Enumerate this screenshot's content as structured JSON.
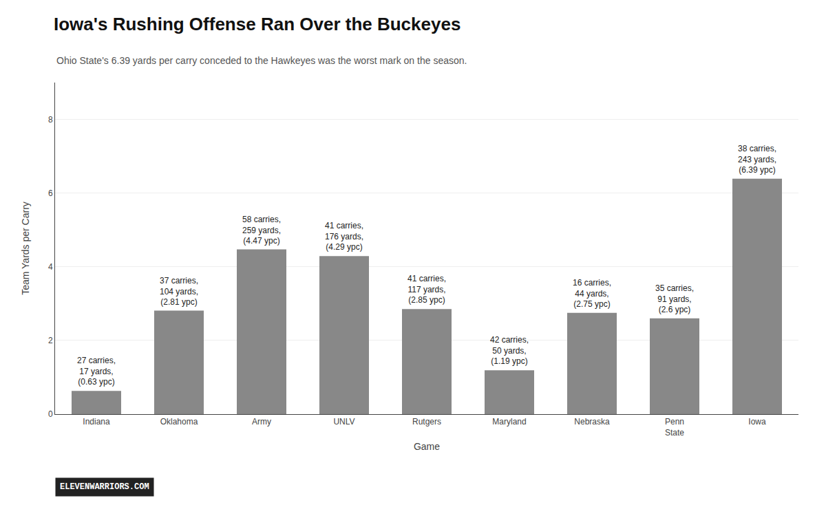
{
  "chart_data": {
    "type": "bar",
    "title": "Iowa's Rushing Offense Ran Over the Buckeyes",
    "subtitle": "Ohio State's 6.39 yards per carry conceded to the Hawkeyes was the worst mark on the season.",
    "ylabel": "Team Yards per Carry",
    "xlabel": "Game",
    "categories": [
      "Indiana",
      "Oklahoma",
      "Army",
      "UNLV",
      "Rutgers",
      "Maryland",
      "Nebraska",
      "Penn\nState",
      "Iowa"
    ],
    "values": [
      0.63,
      2.81,
      4.47,
      4.29,
      2.85,
      1.19,
      2.75,
      2.6,
      6.39
    ],
    "annotations": [
      "27 carries,\n17 yards,\n(0.63 ypc)",
      "37 carries,\n104 yards,\n(2.81 ypc)",
      "58 carries,\n259 yards,\n(4.47 ypc)",
      "41 carries,\n176 yards,\n(4.29 ypc)",
      "41 carries,\n117 yards,\n(2.85 ypc)",
      "42 carries,\n50 yards,\n(1.19 ypc)",
      "16 carries,\n44 yards,\n(2.75 ypc)",
      "35 carries,\n91 yards,\n(2.6 ypc)",
      "38 carries,\n243 yards,\n(6.39 ypc)"
    ],
    "color": "#888888",
    "ylim": [
      0,
      9
    ],
    "yticks": [
      0,
      2,
      4,
      6,
      8
    ],
    "grid": true,
    "logo_text": "ELEVENWARRIORS.COM"
  }
}
